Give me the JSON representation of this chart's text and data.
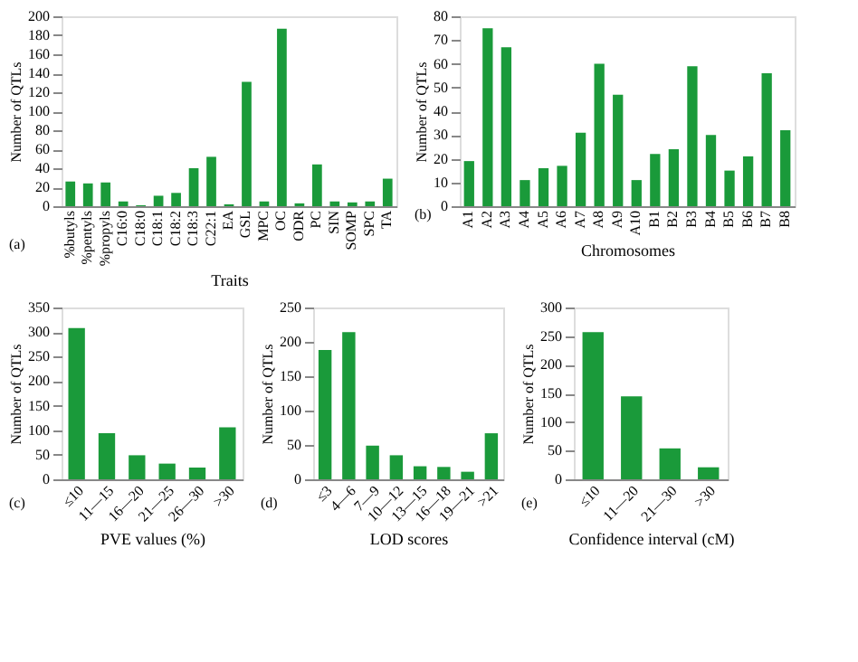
{
  "chart_data": [
    {
      "type": "bar",
      "xlabel": "Traits",
      "ylabel": "Number of QTLs",
      "annotations": [
        "(a)"
      ],
      "color": "#1a9a3a",
      "ylim": [
        0,
        200
      ],
      "yticks": [
        0,
        20,
        40,
        60,
        80,
        100,
        120,
        140,
        160,
        180,
        200
      ],
      "categories": [
        "%butyls",
        "%pentyls",
        "%propyls",
        "C16:0",
        "C18:0",
        "C18:1",
        "C18:2",
        "C18:3",
        "C22:1",
        "EA",
        "GSL",
        "MPC",
        "OC",
        "ODR",
        "PC",
        "SIN",
        "SOMP",
        "SPC",
        "TA"
      ],
      "values": [
        26,
        24,
        25,
        5,
        1,
        11,
        14,
        40,
        52,
        2,
        131,
        5,
        187,
        3,
        44,
        5,
        4,
        5,
        29
      ]
    },
    {
      "type": "bar",
      "xlabel": "Chromosomes",
      "ylabel": "Number of QTLs",
      "annotations": [
        "(b)"
      ],
      "color": "#1a9a3a",
      "ylim": [
        0,
        80
      ],
      "yticks": [
        0,
        10,
        20,
        30,
        40,
        50,
        60,
        70,
        80
      ],
      "categories": [
        "A1",
        "A2",
        "A3",
        "A4",
        "A5",
        "A6",
        "A7",
        "A8",
        "A9",
        "A10",
        "B1",
        "B2",
        "B3",
        "B4",
        "B5",
        "B6",
        "B7",
        "B8"
      ],
      "values": [
        19,
        75,
        67,
        11,
        16,
        17,
        31,
        60,
        47,
        11,
        22,
        24,
        59,
        30,
        15,
        21,
        56,
        32
      ]
    },
    {
      "type": "bar",
      "xlabel": "PVE values (%)",
      "ylabel": "Number of QTLs",
      "annotations": [
        "(c)"
      ],
      "color": "#1a9a3a",
      "ylim": [
        0,
        350
      ],
      "yticks": [
        0,
        50,
        100,
        150,
        200,
        250,
        300,
        350
      ],
      "categories": [
        "≤10",
        "11—15",
        "16—20",
        "21—25",
        "26—30",
        ">30"
      ],
      "values": [
        308,
        94,
        49,
        32,
        24,
        106
      ]
    },
    {
      "type": "bar",
      "xlabel": "LOD scores",
      "ylabel": "Number of QTLs",
      "annotations": [
        "(d)"
      ],
      "color": "#1a9a3a",
      "ylim": [
        0,
        250
      ],
      "yticks": [
        0,
        50,
        100,
        150,
        200,
        250
      ],
      "categories": [
        "≤3",
        "4—6",
        "7—9",
        "10—12",
        "13—15",
        "16—18",
        "19—21",
        ">21"
      ],
      "values": [
        188,
        214,
        49,
        35,
        19,
        18,
        11,
        67
      ]
    },
    {
      "type": "bar",
      "xlabel": "Confidence interval (cM)",
      "ylabel": "Number of QTLs",
      "annotations": [
        "(e)"
      ],
      "color": "#1a9a3a",
      "ylim": [
        0,
        300
      ],
      "yticks": [
        0,
        50,
        100,
        150,
        200,
        250,
        300
      ],
      "categories": [
        "≤10",
        "11—20",
        "21—30",
        ">30"
      ],
      "values": [
        257,
        145,
        54,
        21
      ]
    }
  ]
}
